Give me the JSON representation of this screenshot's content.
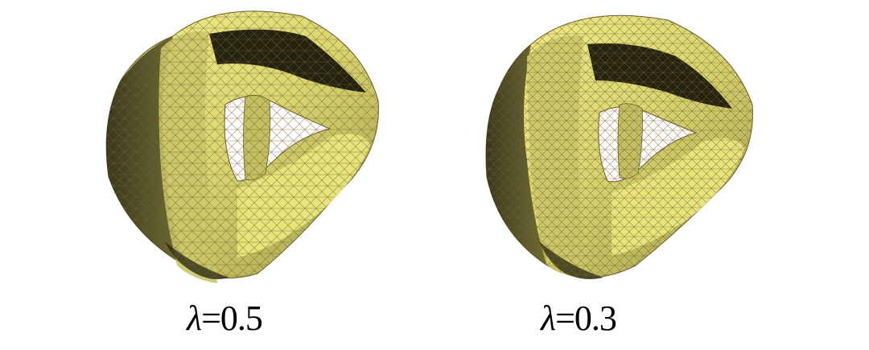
{
  "panels": [
    {
      "symbol": "λ",
      "relation": "=",
      "value": "0.5"
    },
    {
      "symbol": "λ",
      "relation": "=",
      "value": "0.3"
    }
  ],
  "colors": {
    "mesh_fill": "#e6e57a",
    "mesh_light": "#f2f08c",
    "mesh_mid": "#b8b65c",
    "mesh_dark": "#5e5d2c",
    "shadow": "#1a1a0e",
    "edges": "#7a5a2a"
  }
}
